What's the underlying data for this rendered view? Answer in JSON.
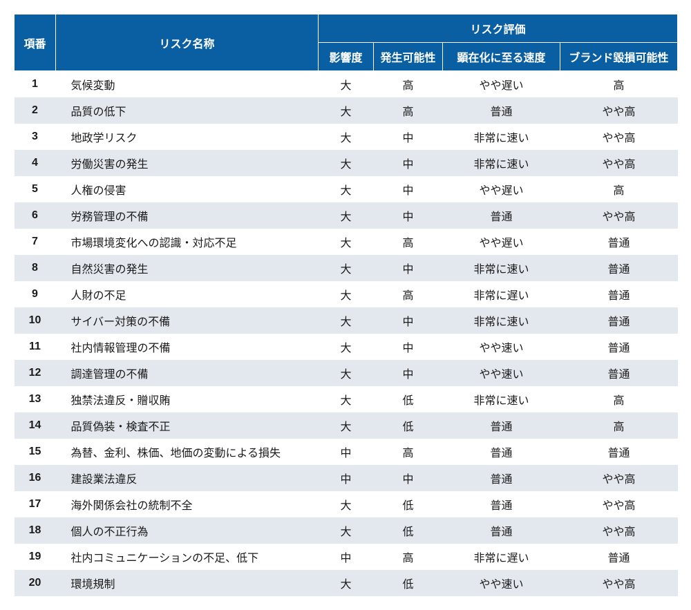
{
  "header": {
    "num": "項番",
    "name": "リスク名称",
    "group": "リスク評価",
    "impact": "影響度",
    "prob": "発生可能性",
    "speed": "顕在化に至る速度",
    "brand": "ブランド毀損可能性"
  },
  "colors": {
    "header_bg": "#0a5fa3",
    "header_text": "#ffffff",
    "row_odd_bg": "#ffffff",
    "row_even_bg": "#e3e8ee",
    "text": "#1a1a1a"
  },
  "rows": [
    {
      "num": "1",
      "name": "気候変動",
      "impact": "大",
      "prob": "高",
      "speed": "やや遅い",
      "brand": "高"
    },
    {
      "num": "2",
      "name": "品質の低下",
      "impact": "大",
      "prob": "高",
      "speed": "普通",
      "brand": "やや高"
    },
    {
      "num": "3",
      "name": "地政学リスク",
      "impact": "大",
      "prob": "中",
      "speed": "非常に速い",
      "brand": "やや高"
    },
    {
      "num": "4",
      "name": "労働災害の発生",
      "impact": "大",
      "prob": "中",
      "speed": "非常に速い",
      "brand": "やや高"
    },
    {
      "num": "5",
      "name": "人権の侵害",
      "impact": "大",
      "prob": "中",
      "speed": "やや遅い",
      "brand": "高"
    },
    {
      "num": "6",
      "name": "労務管理の不備",
      "impact": "大",
      "prob": "中",
      "speed": "普通",
      "brand": "やや高"
    },
    {
      "num": "7",
      "name": "市場環境変化への認識・対応不足",
      "impact": "大",
      "prob": "高",
      "speed": "やや遅い",
      "brand": "普通"
    },
    {
      "num": "8",
      "name": "自然災害の発生",
      "impact": "大",
      "prob": "中",
      "speed": "非常に速い",
      "brand": "普通"
    },
    {
      "num": "9",
      "name": "人財の不足",
      "impact": "大",
      "prob": "高",
      "speed": "非常に遅い",
      "brand": "普通"
    },
    {
      "num": "10",
      "name": "サイバー対策の不備",
      "impact": "大",
      "prob": "中",
      "speed": "非常に速い",
      "brand": "普通"
    },
    {
      "num": "11",
      "name": "社内情報管理の不備",
      "impact": "大",
      "prob": "中",
      "speed": "やや速い",
      "brand": "普通"
    },
    {
      "num": "12",
      "name": "調達管理の不備",
      "impact": "大",
      "prob": "中",
      "speed": "やや速い",
      "brand": "普通"
    },
    {
      "num": "13",
      "name": "独禁法違反・贈収賄",
      "impact": "大",
      "prob": "低",
      "speed": "非常に速い",
      "brand": "高"
    },
    {
      "num": "14",
      "name": "品質偽装・検査不正",
      "impact": "大",
      "prob": "低",
      "speed": "普通",
      "brand": "高"
    },
    {
      "num": "15",
      "name": "為替、金利、株価、地価の変動による損失",
      "impact": "中",
      "prob": "高",
      "speed": "普通",
      "brand": "普通"
    },
    {
      "num": "16",
      "name": "建設業法違反",
      "impact": "中",
      "prob": "中",
      "speed": "普通",
      "brand": "やや高"
    },
    {
      "num": "17",
      "name": "海外関係会社の統制不全",
      "impact": "大",
      "prob": "低",
      "speed": "普通",
      "brand": "やや高"
    },
    {
      "num": "18",
      "name": "個人の不正行為",
      "impact": "大",
      "prob": "低",
      "speed": "普通",
      "brand": "やや高"
    },
    {
      "num": "19",
      "name": "社内コミュニケーションの不足、低下",
      "impact": "中",
      "prob": "高",
      "speed": "非常に遅い",
      "brand": "普通"
    },
    {
      "num": "20",
      "name": "環境規制",
      "impact": "大",
      "prob": "低",
      "speed": "やや速い",
      "brand": "やや高"
    }
  ]
}
